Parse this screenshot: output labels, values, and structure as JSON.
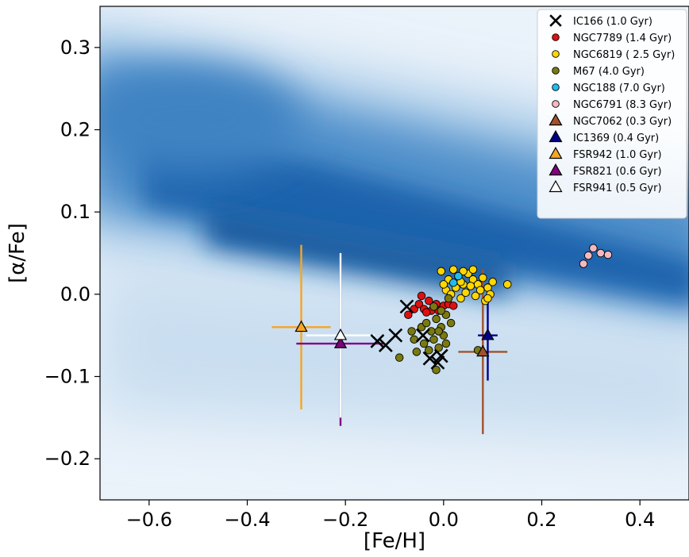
{
  "chart_data": {
    "type": "scatter",
    "title": "",
    "xlabel": "[Fe/H]",
    "ylabel": "[α/Fe]",
    "xlim": [
      -0.7,
      0.5
    ],
    "ylim": [
      -0.25,
      0.35
    ],
    "x_ticks": [
      -0.6,
      -0.4,
      -0.2,
      0.0,
      0.2,
      0.4
    ],
    "x_tick_labels": [
      "−0.6",
      "−0.4",
      "−0.2",
      "0.0",
      "0.2",
      "0.4"
    ],
    "y_ticks": [
      -0.2,
      -0.1,
      0.0,
      0.1,
      0.2,
      0.3
    ],
    "y_tick_labels": [
      "−0.2",
      "−0.1",
      "0.0",
      "0.1",
      "0.2",
      "0.3"
    ],
    "grid": false,
    "legend_position": "top-right",
    "background": "density map of field stars (blue)",
    "series": [
      {
        "name": "IC166 (1.0 Gyr)",
        "marker": "x",
        "color": "#000000",
        "points": [
          [
            -0.135,
            -0.057
          ],
          [
            -0.118,
            -0.062
          ],
          [
            -0.098,
            -0.05
          ],
          [
            -0.075,
            -0.015
          ],
          [
            -0.042,
            -0.05
          ],
          [
            -0.028,
            -0.078
          ],
          [
            -0.012,
            -0.083
          ],
          [
            -0.005,
            -0.075
          ]
        ]
      },
      {
        "name": "NGC7789 (1.4 Gyr)",
        "marker": "o",
        "color": "#dd1111",
        "points": [
          [
            -0.072,
            -0.025
          ],
          [
            -0.06,
            -0.018
          ],
          [
            -0.05,
            -0.012
          ],
          [
            -0.04,
            -0.018
          ],
          [
            -0.03,
            -0.008
          ],
          [
            -0.025,
            -0.02
          ],
          [
            -0.015,
            -0.012
          ],
          [
            -0.01,
            -0.02
          ],
          [
            0.0,
            -0.014
          ],
          [
            0.01,
            -0.012
          ],
          [
            0.02,
            -0.014
          ],
          [
            -0.045,
            -0.002
          ],
          [
            -0.035,
            -0.022
          ]
        ]
      },
      {
        "name": "NGC6819 ( 2.5 Gyr)",
        "marker": "o",
        "color": "#ffd700",
        "points": [
          [
            -0.005,
            0.028
          ],
          [
            0.01,
            0.018
          ],
          [
            0.02,
            0.03
          ],
          [
            0.03,
            0.022
          ],
          [
            0.04,
            0.012
          ],
          [
            0.05,
            0.025
          ],
          [
            0.06,
            0.018
          ],
          [
            0.07,
            0.012
          ],
          [
            0.08,
            0.02
          ],
          [
            0.09,
            0.008
          ],
          [
            0.1,
            0.015
          ],
          [
            0.13,
            0.012
          ],
          [
            0.005,
            0.005
          ],
          [
            0.015,
            0.0
          ],
          [
            0.025,
            0.008
          ],
          [
            0.035,
            -0.005
          ],
          [
            0.045,
            0.002
          ],
          [
            0.055,
            0.01
          ],
          [
            0.065,
            -0.002
          ],
          [
            0.075,
            0.005
          ],
          [
            0.085,
            -0.008
          ],
          [
            0.095,
            0.0
          ],
          [
            0.04,
            0.028
          ],
          [
            0.06,
            0.03
          ],
          [
            0.035,
            0.015
          ],
          [
            0.0,
            0.012
          ],
          [
            0.09,
            -0.005
          ]
        ]
      },
      {
        "name": "M67 (4.0 Gyr)",
        "marker": "o",
        "color": "#7a7a10",
        "points": [
          [
            -0.06,
            -0.055
          ],
          [
            -0.045,
            -0.04
          ],
          [
            -0.035,
            -0.035
          ],
          [
            -0.025,
            -0.045
          ],
          [
            -0.015,
            -0.03
          ],
          [
            -0.005,
            -0.04
          ],
          [
            0.005,
            -0.025
          ],
          [
            0.015,
            -0.035
          ],
          [
            -0.02,
            -0.055
          ],
          [
            -0.01,
            -0.065
          ],
          [
            0.0,
            -0.05
          ],
          [
            -0.03,
            -0.068
          ],
          [
            -0.055,
            -0.07
          ],
          [
            -0.015,
            -0.092
          ],
          [
            0.005,
            -0.06
          ],
          [
            -0.005,
            -0.02
          ],
          [
            -0.04,
            -0.06
          ],
          [
            -0.09,
            -0.077
          ],
          [
            -0.02,
            -0.015
          ],
          [
            0.07,
            -0.068
          ],
          [
            0.01,
            -0.005
          ],
          [
            -0.065,
            -0.045
          ],
          [
            -0.01,
            -0.045
          ]
        ]
      },
      {
        "name": "NGC188 (7.0 Gyr)",
        "marker": "o",
        "color": "#22bbee",
        "points": [
          [
            0.02,
            0.014
          ],
          [
            0.03,
            0.022
          ]
        ]
      },
      {
        "name": "NGC6791 (8.3 Gyr)",
        "marker": "o",
        "color": "#f4b8c0",
        "points": [
          [
            0.285,
            0.037
          ],
          [
            0.295,
            0.047
          ],
          [
            0.305,
            0.056
          ],
          [
            0.32,
            0.05
          ],
          [
            0.335,
            0.048
          ]
        ]
      },
      {
        "name": "NGC7062 (0.3 Gyr)",
        "marker": "^",
        "color": "#a0522d",
        "points": [
          [
            0.08,
            -0.07
          ]
        ],
        "xerr": 0.05,
        "yerr": 0.1
      },
      {
        "name": "IC1369 (0.4 Gyr)",
        "marker": "^",
        "color": "#00008b",
        "points": [
          [
            0.09,
            -0.05
          ]
        ],
        "xerr": 0.02,
        "yerr": 0.055
      },
      {
        "name": "FSR942 (1.0 Gyr)",
        "marker": "^",
        "color": "#f5a623",
        "points": [
          [
            -0.29,
            -0.04
          ]
        ],
        "xerr": 0.06,
        "yerr": 0.1
      },
      {
        "name": "FSR821 (0.6 Gyr)",
        "marker": "^",
        "color": "#800080",
        "points": [
          [
            -0.21,
            -0.06
          ]
        ],
        "xerr": 0.09,
        "yerr": 0.1
      },
      {
        "name": "FSR941 (0.5 Gyr)",
        "marker": "^",
        "color": "#ffffff",
        "points": [
          [
            -0.21,
            -0.05
          ]
        ],
        "xerr": 0.07,
        "yerr": 0.1
      }
    ]
  }
}
